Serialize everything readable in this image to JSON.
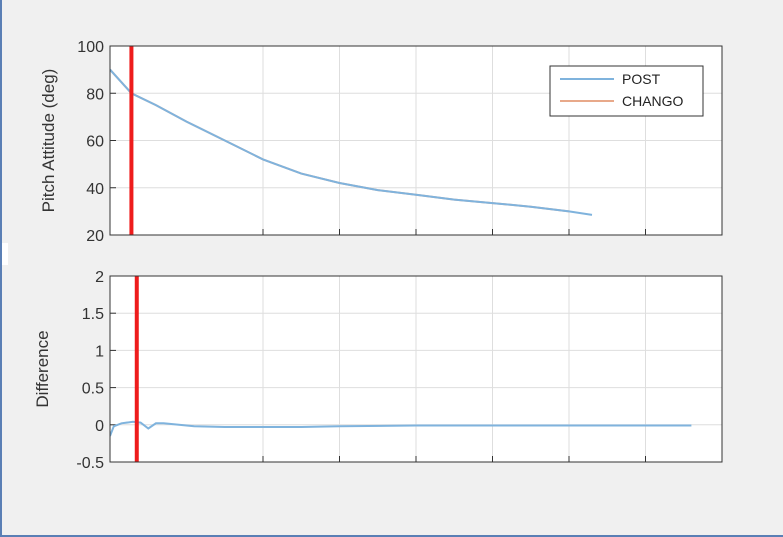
{
  "chart_data": [
    {
      "type": "line",
      "ylabel": "Pitch Attitude (deg)",
      "xlabel": "",
      "title": "",
      "ylim": [
        20,
        100
      ],
      "xlim": [
        0,
        8
      ],
      "yticks": [
        "20",
        "40",
        "60",
        "80",
        "100"
      ],
      "grid": true,
      "legend": "top-right",
      "marker_x": 0.28,
      "series": [
        {
          "name": "POST",
          "color": "#7fb3dd",
          "x": [
            0,
            0.28,
            0.6,
            1.0,
            1.5,
            2.0,
            2.5,
            3.0,
            3.5,
            4.0,
            4.5,
            5.0,
            5.5,
            6.0,
            6.3
          ],
          "y": [
            90,
            80,
            75,
            68,
            60,
            52,
            46,
            42,
            39,
            37,
            35,
            33.5,
            32,
            30,
            28.5
          ]
        },
        {
          "name": "CHANGO",
          "color": "#e8a98a",
          "x": [
            0,
            0.28,
            0.6,
            1.0,
            1.5,
            2.0,
            2.5,
            3.0,
            3.5,
            4.0,
            4.5,
            5.0,
            5.5,
            6.0
          ],
          "y": [
            90,
            80,
            75,
            68,
            60,
            52,
            46,
            42,
            39,
            37,
            35,
            33.5,
            32,
            30
          ]
        }
      ]
    },
    {
      "type": "line",
      "ylabel": "Difference",
      "xlabel": "",
      "title": "",
      "ylim": [
        -0.5,
        2
      ],
      "xlim": [
        0,
        8
      ],
      "yticks": [
        "-0.5",
        "0",
        "0.5",
        "1",
        "1.5",
        "2"
      ],
      "grid": true,
      "marker_x": 0.35,
      "series": [
        {
          "name": "",
          "color": "#7fb3dd",
          "x": [
            0,
            0.05,
            0.15,
            0.3,
            0.4,
            0.5,
            0.6,
            0.7,
            0.9,
            1.1,
            1.5,
            2.0,
            2.5,
            3.0,
            4.0,
            5.0,
            6.0,
            7.0,
            7.6
          ],
          "y": [
            -0.15,
            -0.02,
            0.02,
            0.04,
            0.03,
            -0.05,
            0.02,
            0.02,
            0.0,
            -0.02,
            -0.03,
            -0.03,
            -0.03,
            -0.02,
            -0.01,
            -0.01,
            -0.01,
            -0.01,
            -0.01
          ]
        }
      ]
    }
  ]
}
